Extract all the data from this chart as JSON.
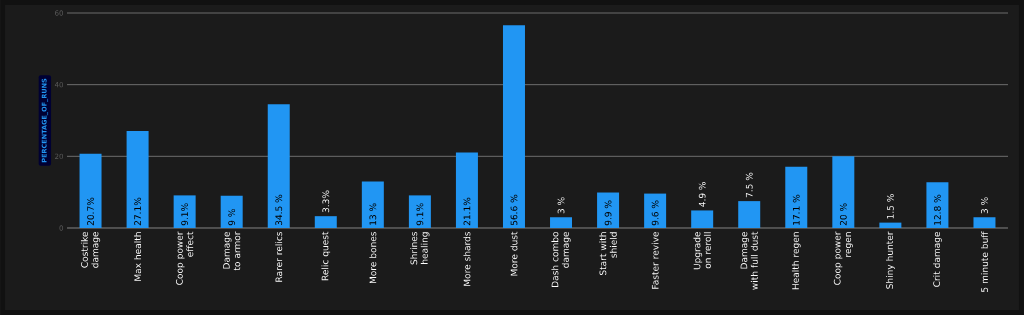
{
  "chart_data": {
    "type": "bar",
    "ylabel": "PERCENTAGE_OF_RUNS",
    "categories": [
      "Costrike damage",
      "Max health",
      "Coop power effect",
      "Damage to armor",
      "Rarer relics",
      "Relic quest",
      "More bones",
      "Shrines healing",
      "More shards",
      "More dust",
      "Dash combo damage",
      "Start with shield",
      "Faster revive",
      "Upgrade on reroll",
      "Damage with full dust",
      "Health regen",
      "Coop power regen",
      "Shiny hunter",
      "Crit damage",
      "5 minute buff"
    ],
    "values": [
      20.7,
      27.1,
      9.1,
      9,
      34.5,
      3.3,
      13,
      9.1,
      21.1,
      56.6,
      3,
      9.9,
      9.6,
      4.9,
      7.5,
      17.1,
      20,
      1.5,
      12.8,
      3
    ],
    "value_labels": [
      "20.7%",
      "27.1%",
      "9.1%",
      "9 %",
      "34.5 %",
      "3.3%",
      "13 %",
      "9.1%",
      "21.1%",
      "56.6 %",
      "3 %",
      "9.9 %",
      "9.6 %",
      "4.9 %",
      "7.5 %",
      "17.1 %",
      "20 %",
      "1.5 %",
      "12.8 %",
      "3 %"
    ],
    "color": "#2196f3",
    "ylim": [
      0,
      60
    ],
    "yticks": [
      0,
      20,
      40,
      60
    ],
    "grid": "y"
  }
}
